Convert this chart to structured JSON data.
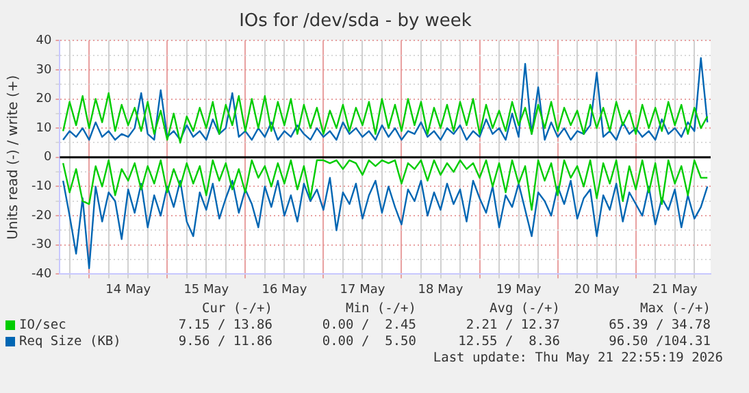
{
  "chart_data": {
    "type": "line",
    "title": "IOs for /dev/sda - by week",
    "ylabel": "Units read (-) / write (+)",
    "x": [
      "2026-05-13T16:00",
      "2026-05-13T18:00",
      "2026-05-13T20:00",
      "2026-05-13T22:00",
      "2026-05-14T00:00",
      "2026-05-14T02:00",
      "2026-05-14T04:00",
      "2026-05-14T06:00",
      "2026-05-14T08:00",
      "2026-05-14T10:00",
      "2026-05-14T12:00",
      "2026-05-14T14:00",
      "2026-05-14T16:00",
      "2026-05-14T18:00",
      "2026-05-14T20:00",
      "2026-05-14T22:00",
      "2026-05-15T00:00",
      "2026-05-15T02:00",
      "2026-05-15T04:00",
      "2026-05-15T06:00",
      "2026-05-15T08:00",
      "2026-05-15T10:00",
      "2026-05-15T12:00",
      "2026-05-15T14:00",
      "2026-05-15T16:00",
      "2026-05-15T18:00",
      "2026-05-15T20:00",
      "2026-05-15T22:00",
      "2026-05-16T00:00",
      "2026-05-16T02:00",
      "2026-05-16T04:00",
      "2026-05-16T06:00",
      "2026-05-16T08:00",
      "2026-05-16T10:00",
      "2026-05-16T12:00",
      "2026-05-16T14:00",
      "2026-05-16T16:00",
      "2026-05-16T18:00",
      "2026-05-16T20:00",
      "2026-05-16T22:00",
      "2026-05-17T00:00",
      "2026-05-17T02:00",
      "2026-05-17T04:00",
      "2026-05-17T06:00",
      "2026-05-17T08:00",
      "2026-05-17T10:00",
      "2026-05-17T12:00",
      "2026-05-17T14:00",
      "2026-05-17T16:00",
      "2026-05-17T18:00",
      "2026-05-17T20:00",
      "2026-05-17T22:00",
      "2026-05-18T00:00",
      "2026-05-18T02:00",
      "2026-05-18T04:00",
      "2026-05-18T06:00",
      "2026-05-18T08:00",
      "2026-05-18T10:00",
      "2026-05-18T12:00",
      "2026-05-18T14:00",
      "2026-05-18T16:00",
      "2026-05-18T18:00",
      "2026-05-18T20:00",
      "2026-05-18T22:00",
      "2026-05-19T00:00",
      "2026-05-19T02:00",
      "2026-05-19T04:00",
      "2026-05-19T06:00",
      "2026-05-19T08:00",
      "2026-05-19T10:00",
      "2026-05-19T12:00",
      "2026-05-19T14:00",
      "2026-05-19T16:00",
      "2026-05-19T18:00",
      "2026-05-19T20:00",
      "2026-05-19T22:00",
      "2026-05-20T00:00",
      "2026-05-20T02:00",
      "2026-05-20T04:00",
      "2026-05-20T06:00",
      "2026-05-20T08:00",
      "2026-05-20T10:00",
      "2026-05-20T12:00",
      "2026-05-20T14:00",
      "2026-05-20T16:00",
      "2026-05-20T18:00",
      "2026-05-20T20:00",
      "2026-05-20T22:00",
      "2026-05-21T00:00",
      "2026-05-21T02:00",
      "2026-05-21T04:00",
      "2026-05-21T06:00",
      "2026-05-21T08:00",
      "2026-05-21T10:00",
      "2026-05-21T12:00",
      "2026-05-21T14:00",
      "2026-05-21T16:00",
      "2026-05-21T18:00",
      "2026-05-21T20:00",
      "2026-05-21T22:00"
    ],
    "series": [
      {
        "name": "IO/sec",
        "color": "#00cc00",
        "values": [
          9,
          19,
          11,
          21,
          10,
          20,
          12,
          22,
          9,
          18,
          11,
          17,
          9,
          19,
          8,
          16,
          6,
          15,
          5,
          14,
          9,
          17,
          10,
          19,
          8,
          18,
          11,
          21,
          9,
          20,
          10,
          21,
          9,
          19,
          11,
          20,
          8,
          18,
          10,
          17,
          8,
          16,
          10,
          18,
          9,
          17,
          11,
          19,
          8,
          20,
          10,
          18,
          9,
          20,
          11,
          19,
          8,
          17,
          10,
          18,
          9,
          19,
          11,
          20,
          8,
          18,
          10,
          16,
          9,
          19,
          11,
          17,
          8,
          18,
          10,
          19,
          9,
          17,
          11,
          16,
          8,
          18,
          10,
          17,
          9,
          19,
          11,
          16,
          8,
          18,
          10,
          17,
          9,
          19,
          11,
          18,
          8,
          17,
          10,
          14
        ]
      },
      {
        "color": "#00cc00",
        "values": [
          -2,
          -12,
          -4,
          -15,
          -16,
          -3,
          -10,
          -1,
          -13,
          -4,
          -8,
          -2,
          -11,
          -3,
          -9,
          -1,
          -12,
          -4,
          -10,
          -2,
          -9,
          -3,
          -13,
          -1,
          -8,
          -2,
          -11,
          -4,
          -12,
          -1,
          -7,
          -3,
          -10,
          -2,
          -9,
          -1,
          -11,
          -3,
          -14,
          -1,
          -1,
          -2,
          -1,
          -4,
          -1,
          -2,
          -6,
          -1,
          -3,
          -1,
          -2,
          -1,
          -9,
          -2,
          -4,
          -1,
          -8,
          -1,
          -6,
          -2,
          -5,
          -1,
          -4,
          -2,
          -7,
          -1,
          -10,
          -2,
          -12,
          -1,
          -9,
          -3,
          -18,
          -1,
          -8,
          -2,
          -13,
          -1,
          -7,
          -3,
          -10,
          -1,
          -14,
          -2,
          -9,
          -1,
          -15,
          -3,
          -11,
          -1,
          -12,
          -2,
          -16,
          -1,
          -9,
          -3,
          -13,
          -1,
          -7,
          -7
        ]
      },
      {
        "name": "Req Size (KB)",
        "color": "#0066b3",
        "values": [
          6,
          9,
          7,
          10,
          6,
          12,
          7,
          9,
          6,
          8,
          7,
          10,
          22,
          8,
          6,
          23,
          7,
          9,
          6,
          11,
          7,
          9,
          6,
          13,
          8,
          10,
          22,
          7,
          9,
          6,
          10,
          7,
          12,
          6,
          9,
          7,
          11,
          8,
          6,
          10,
          7,
          9,
          6,
          12,
          8,
          10,
          7,
          9,
          6,
          11,
          7,
          10,
          6,
          9,
          8,
          12,
          7,
          9,
          6,
          10,
          8,
          11,
          6,
          9,
          7,
          13,
          8,
          10,
          6,
          15,
          7,
          32,
          8,
          24,
          6,
          12,
          7,
          10,
          6,
          9,
          8,
          11,
          29,
          7,
          9,
          6,
          12,
          8,
          10,
          7,
          9,
          6,
          13,
          8,
          10,
          7,
          12,
          9,
          34,
          12
        ]
      },
      {
        "color": "#0066b3",
        "values": [
          -8,
          -20,
          -33,
          -14,
          -38,
          -10,
          -22,
          -12,
          -15,
          -28,
          -11,
          -19,
          -9,
          -24,
          -13,
          -20,
          -10,
          -17,
          -8,
          -22,
          -27,
          -12,
          -18,
          -9,
          -21,
          -14,
          -8,
          -19,
          -11,
          -16,
          -24,
          -10,
          -17,
          -8,
          -20,
          -13,
          -22,
          -9,
          -15,
          -11,
          -18,
          -7,
          -25,
          -12,
          -16,
          -9,
          -21,
          -13,
          -8,
          -19,
          -10,
          -17,
          -23,
          -11,
          -15,
          -8,
          -20,
          -12,
          -18,
          -9,
          -16,
          -11,
          -22,
          -8,
          -14,
          -19,
          -10,
          -24,
          -13,
          -17,
          -9,
          -18,
          -27,
          -12,
          -15,
          -20,
          -10,
          -16,
          -8,
          -21,
          -14,
          -11,
          -27,
          -13,
          -18,
          -9,
          -22,
          -12,
          -16,
          -20,
          -10,
          -23,
          -14,
          -18,
          -11,
          -24,
          -13,
          -21,
          -17,
          -10
        ]
      }
    ],
    "xlim": [
      "2026-05-13T15:00",
      "2026-05-21T23:00"
    ],
    "xticks": [
      {
        "value": "2026-05-13T18:00",
        "label": null
      },
      {
        "value": "2026-05-14T00:00",
        "label": null
      },
      {
        "value": "2026-05-14T06:00",
        "label": null
      },
      {
        "value": "2026-05-14T12:00",
        "label": "14 May"
      },
      {
        "value": "2026-05-14T18:00",
        "label": null
      },
      {
        "value": "2026-05-15T00:00",
        "label": null
      },
      {
        "value": "2026-05-15T06:00",
        "label": null
      },
      {
        "value": "2026-05-15T12:00",
        "label": "15 May"
      },
      {
        "value": "2026-05-15T18:00",
        "label": null
      },
      {
        "value": "2026-05-16T00:00",
        "label": null
      },
      {
        "value": "2026-05-16T06:00",
        "label": null
      },
      {
        "value": "2026-05-16T12:00",
        "label": "16 May"
      },
      {
        "value": "2026-05-16T18:00",
        "label": null
      },
      {
        "value": "2026-05-17T00:00",
        "label": null
      },
      {
        "value": "2026-05-17T06:00",
        "label": null
      },
      {
        "value": "2026-05-17T12:00",
        "label": "17 May"
      },
      {
        "value": "2026-05-17T18:00",
        "label": null
      },
      {
        "value": "2026-05-18T00:00",
        "label": null
      },
      {
        "value": "2026-05-18T06:00",
        "label": null
      },
      {
        "value": "2026-05-18T12:00",
        "label": "18 May"
      },
      {
        "value": "2026-05-18T18:00",
        "label": null
      },
      {
        "value": "2026-05-19T00:00",
        "label": null
      },
      {
        "value": "2026-05-19T06:00",
        "label": null
      },
      {
        "value": "2026-05-19T12:00",
        "label": "19 May"
      },
      {
        "value": "2026-05-19T18:00",
        "label": null
      },
      {
        "value": "2026-05-20T00:00",
        "label": null
      },
      {
        "value": "2026-05-20T06:00",
        "label": null
      },
      {
        "value": "2026-05-20T12:00",
        "label": "20 May"
      },
      {
        "value": "2026-05-20T18:00",
        "label": null
      },
      {
        "value": "2026-05-21T00:00",
        "label": null
      },
      {
        "value": "2026-05-21T06:00",
        "label": null
      },
      {
        "value": "2026-05-21T12:00",
        "label": "21 May"
      },
      {
        "value": "2026-05-21T18:00",
        "label": null
      }
    ],
    "ylim": [
      -40,
      40
    ],
    "yticks": [
      -40,
      {
        "value": -35,
        "label": null
      },
      -30,
      {
        "value": -25,
        "label": null
      },
      -20,
      {
        "value": -15,
        "label": null
      },
      -10,
      {
        "value": -5,
        "label": null
      },
      0,
      {
        "value": 5,
        "label": null
      },
      10,
      {
        "value": 15,
        "label": null
      },
      20,
      {
        "value": 25,
        "label": null
      },
      30,
      {
        "value": 35,
        "label": null
      },
      40
    ],
    "grid": true,
    "legend": "bottom",
    "ref_lines": [
      {
        "axis": "y",
        "value": 0,
        "color": "#000000"
      }
    ],
    "marker": "none",
    "line_style": "solid",
    "annotations": [
      "Cur (-/+)",
      "Min (-/+)",
      "Avg (-/+)",
      "Max (-/+)",
      "7.15 / 13.86",
      "0.00 /  2.45",
      "2.21 / 12.37",
      "65.39 / 34.78",
      "9.56 / 11.86",
      "0.00 /  5.50",
      "12.55 /  8.36",
      "96.50 /104.31",
      "Last update: Thu May 21 22:55:19 2026"
    ]
  }
}
